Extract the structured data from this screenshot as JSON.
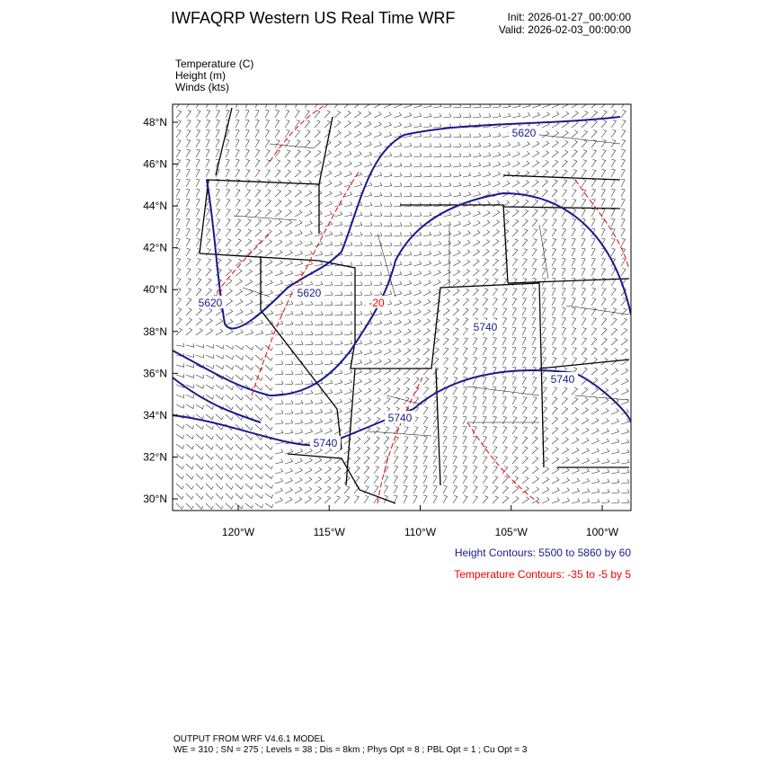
{
  "header": {
    "title": "IWFAQRP Western US Real Time WRF",
    "init": "Init: 2026-01-27_00:00:00",
    "valid": "Valid: 2026-02-03_00:00:00"
  },
  "fields": [
    "Temperature   (C)",
    "Height   (m)",
    "Winds   (kts)"
  ],
  "map": {
    "lat_ticks": [
      {
        "value": 48,
        "label": "48°N"
      },
      {
        "value": 46,
        "label": "46°N"
      },
      {
        "value": 44,
        "label": "44°N"
      },
      {
        "value": 42,
        "label": "42°N"
      },
      {
        "value": 40,
        "label": "40°N"
      },
      {
        "value": 38,
        "label": "38°N"
      },
      {
        "value": 36,
        "label": "36°N"
      },
      {
        "value": 34,
        "label": "34°N"
      },
      {
        "value": 32,
        "label": "32°N"
      },
      {
        "value": 30,
        "label": "30°N"
      }
    ],
    "lon_ticks": [
      {
        "value": -120,
        "label": "120°W"
      },
      {
        "value": -115,
        "label": "115°W"
      },
      {
        "value": -110,
        "label": "110°W"
      },
      {
        "value": -105,
        "label": "105°W"
      },
      {
        "value": -100,
        "label": "100°W"
      }
    ],
    "contour_labels": [
      "5620",
      "5620",
      "5620",
      "5740",
      "5740",
      "5740",
      "5740",
      "-20"
    ]
  },
  "legend": {
    "height": "Height Contours: 5500 to 5860 by 60",
    "temperature": "Temperature Contours: -35 to -5 by 5"
  },
  "footer": {
    "line1": "OUTPUT FROM WRF V4.6.1 MODEL",
    "line2": "WE = 310 ; SN = 275 ; Levels = 38 ; Dis = 8km ; Phys Opt = 8 ; PBL Opt = 1 ; Cu Opt = 3"
  }
}
